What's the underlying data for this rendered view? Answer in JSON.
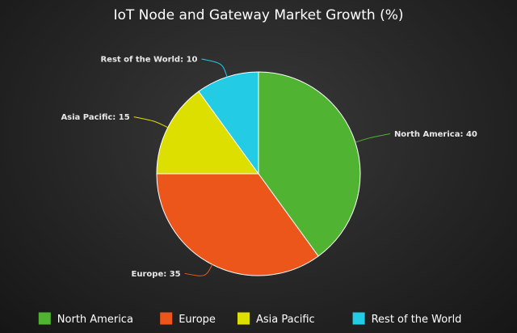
{
  "chart_data": {
    "type": "pie",
    "title": "IoT Node and Gateway Market Growth (%)",
    "categories": [
      "North America",
      "Europe",
      "Asia Pacific",
      "Rest of the World"
    ],
    "values": [
      40,
      35,
      15,
      10
    ],
    "colors": [
      "#50b432",
      "#ed561b",
      "#dddf00",
      "#24cbe5"
    ],
    "data_labels": [
      "North America: 40",
      "Europe: 35",
      "Asia Pacific: 15",
      "Rest of the World: 10"
    ],
    "legend_position": "bottom",
    "start_angle_deg": 0,
    "direction": "clockwise"
  }
}
